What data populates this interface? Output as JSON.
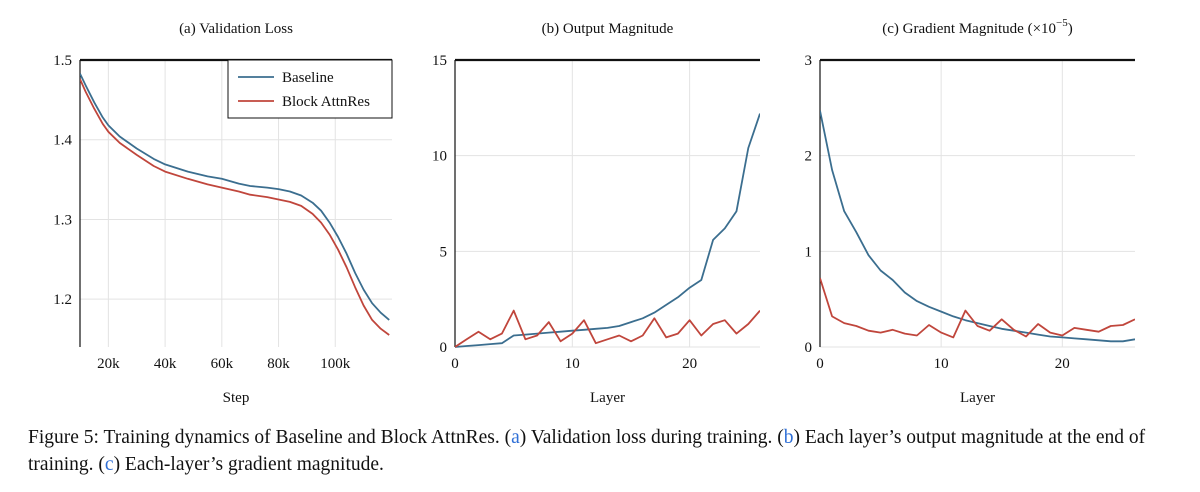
{
  "figure": {
    "caption": {
      "lead": "Figure 5: Training dynamics of Baseline and Block AttnRes. (",
      "a_letter": "a",
      "a_text": ") Validation loss during training. (",
      "b_letter": "b",
      "b_text": ") Each layer’s output magnitude at the end of training. (",
      "c_letter": "c",
      "c_text": ") Each-layer’s gradient magnitude."
    },
    "legend": {
      "baseline": "Baseline",
      "block": "Block AttnRes"
    },
    "colors": {
      "baseline": "#3b6e8f",
      "block": "#c0463c",
      "grid": "#e3e3e3",
      "axis": "#111111"
    }
  },
  "chart_data": [
    {
      "type": "line",
      "title": "(a) Validation Loss",
      "xlabel": "Step",
      "ylabel": "",
      "xlim": [
        10000,
        120000
      ],
      "ylim": [
        1.14,
        1.5
      ],
      "xticks": [
        20000,
        40000,
        60000,
        80000,
        100000
      ],
      "xtick_labels": [
        "20k",
        "40k",
        "60k",
        "80k",
        "100k"
      ],
      "yticks": [
        1.2,
        1.3,
        1.4,
        1.5
      ],
      "ytick_labels": [
        "1.2",
        "1.3",
        "1.4",
        "1.5"
      ],
      "grid": true,
      "legend_position": "top-right",
      "series": [
        {
          "name": "Baseline",
          "x": [
            10000,
            12000,
            15000,
            18000,
            20000,
            24000,
            30000,
            36000,
            40000,
            48000,
            55000,
            60000,
            66000,
            70000,
            76000,
            80000,
            84000,
            88000,
            92000,
            95000,
            98000,
            101000,
            104000,
            107000,
            110000,
            113000,
            116000,
            119000
          ],
          "y": [
            1.483,
            1.468,
            1.447,
            1.428,
            1.418,
            1.404,
            1.389,
            1.376,
            1.369,
            1.36,
            1.354,
            1.351,
            1.345,
            1.342,
            1.34,
            1.338,
            1.335,
            1.33,
            1.321,
            1.311,
            1.296,
            1.278,
            1.257,
            1.233,
            1.212,
            1.195,
            1.183,
            1.174
          ]
        },
        {
          "name": "Block AttnRes",
          "x": [
            10000,
            12000,
            15000,
            18000,
            20000,
            24000,
            30000,
            36000,
            40000,
            48000,
            55000,
            60000,
            66000,
            70000,
            76000,
            80000,
            84000,
            88000,
            92000,
            95000,
            98000,
            101000,
            104000,
            107000,
            110000,
            113000,
            116000,
            119000
          ],
          "y": [
            1.476,
            1.46,
            1.439,
            1.42,
            1.41,
            1.396,
            1.381,
            1.367,
            1.36,
            1.351,
            1.344,
            1.34,
            1.335,
            1.331,
            1.328,
            1.325,
            1.322,
            1.317,
            1.307,
            1.296,
            1.281,
            1.262,
            1.24,
            1.215,
            1.192,
            1.174,
            1.163,
            1.155
          ]
        }
      ]
    },
    {
      "type": "line",
      "title": "(b) Output Magnitude",
      "xlabel": "Layer",
      "ylabel": "",
      "xlim": [
        0,
        26
      ],
      "ylim": [
        0,
        15
      ],
      "xticks": [
        0,
        10,
        20
      ],
      "xtick_labels": [
        "0",
        "10",
        "20"
      ],
      "yticks": [
        0,
        5,
        10,
        15
      ],
      "ytick_labels": [
        "0",
        "5",
        "10",
        "15"
      ],
      "grid": true,
      "series": [
        {
          "name": "Baseline",
          "x": [
            0,
            1,
            2,
            3,
            4,
            5,
            6,
            7,
            8,
            9,
            10,
            11,
            12,
            13,
            14,
            15,
            16,
            17,
            18,
            19,
            20,
            21,
            22,
            23,
            24,
            25,
            26
          ],
          "y": [
            0.0,
            0.05,
            0.1,
            0.15,
            0.2,
            0.6,
            0.65,
            0.7,
            0.75,
            0.8,
            0.85,
            0.9,
            0.95,
            1.0,
            1.1,
            1.3,
            1.5,
            1.8,
            2.2,
            2.6,
            3.1,
            3.5,
            5.6,
            6.2,
            7.1,
            10.4,
            12.2
          ]
        },
        {
          "name": "Block AttnRes",
          "x": [
            0,
            1,
            2,
            3,
            4,
            5,
            6,
            7,
            8,
            9,
            10,
            11,
            12,
            13,
            14,
            15,
            16,
            17,
            18,
            19,
            20,
            21,
            22,
            23,
            24,
            25,
            26
          ],
          "y": [
            0.0,
            0.4,
            0.8,
            0.4,
            0.7,
            1.9,
            0.4,
            0.6,
            1.3,
            0.3,
            0.7,
            1.4,
            0.2,
            0.4,
            0.6,
            0.3,
            0.6,
            1.5,
            0.5,
            0.7,
            1.4,
            0.6,
            1.2,
            1.4,
            0.7,
            1.2,
            1.9
          ]
        }
      ]
    },
    {
      "type": "line",
      "title": "(c) Gradient Magnitude (×10",
      "title_exponent": "−5",
      "title_suffix": ")",
      "xlabel": "Layer",
      "ylabel": "",
      "xlim": [
        0,
        26
      ],
      "ylim": [
        0,
        3
      ],
      "xticks": [
        0,
        10,
        20
      ],
      "xtick_labels": [
        "0",
        "10",
        "20"
      ],
      "yticks": [
        0,
        1,
        2,
        3
      ],
      "ytick_labels": [
        "0",
        "1",
        "2",
        "3"
      ],
      "grid": true,
      "series": [
        {
          "name": "Baseline",
          "x": [
            0,
            1,
            2,
            3,
            4,
            5,
            6,
            7,
            8,
            9,
            10,
            11,
            12,
            13,
            14,
            15,
            16,
            17,
            18,
            19,
            20,
            21,
            22,
            23,
            24,
            25,
            26
          ],
          "y": [
            2.47,
            1.85,
            1.42,
            1.2,
            0.96,
            0.8,
            0.7,
            0.57,
            0.48,
            0.42,
            0.37,
            0.32,
            0.28,
            0.25,
            0.22,
            0.19,
            0.17,
            0.15,
            0.13,
            0.11,
            0.1,
            0.09,
            0.08,
            0.07,
            0.06,
            0.06,
            0.08
          ]
        },
        {
          "name": "Block AttnRes",
          "x": [
            0,
            1,
            2,
            3,
            4,
            5,
            6,
            7,
            8,
            9,
            10,
            11,
            12,
            13,
            14,
            15,
            16,
            17,
            18,
            19,
            20,
            21,
            22,
            23,
            24,
            25,
            26
          ],
          "y": [
            0.72,
            0.32,
            0.25,
            0.22,
            0.17,
            0.15,
            0.18,
            0.14,
            0.12,
            0.23,
            0.15,
            0.1,
            0.38,
            0.22,
            0.17,
            0.29,
            0.18,
            0.11,
            0.24,
            0.15,
            0.12,
            0.2,
            0.18,
            0.16,
            0.22,
            0.23,
            0.29
          ]
        }
      ]
    }
  ]
}
